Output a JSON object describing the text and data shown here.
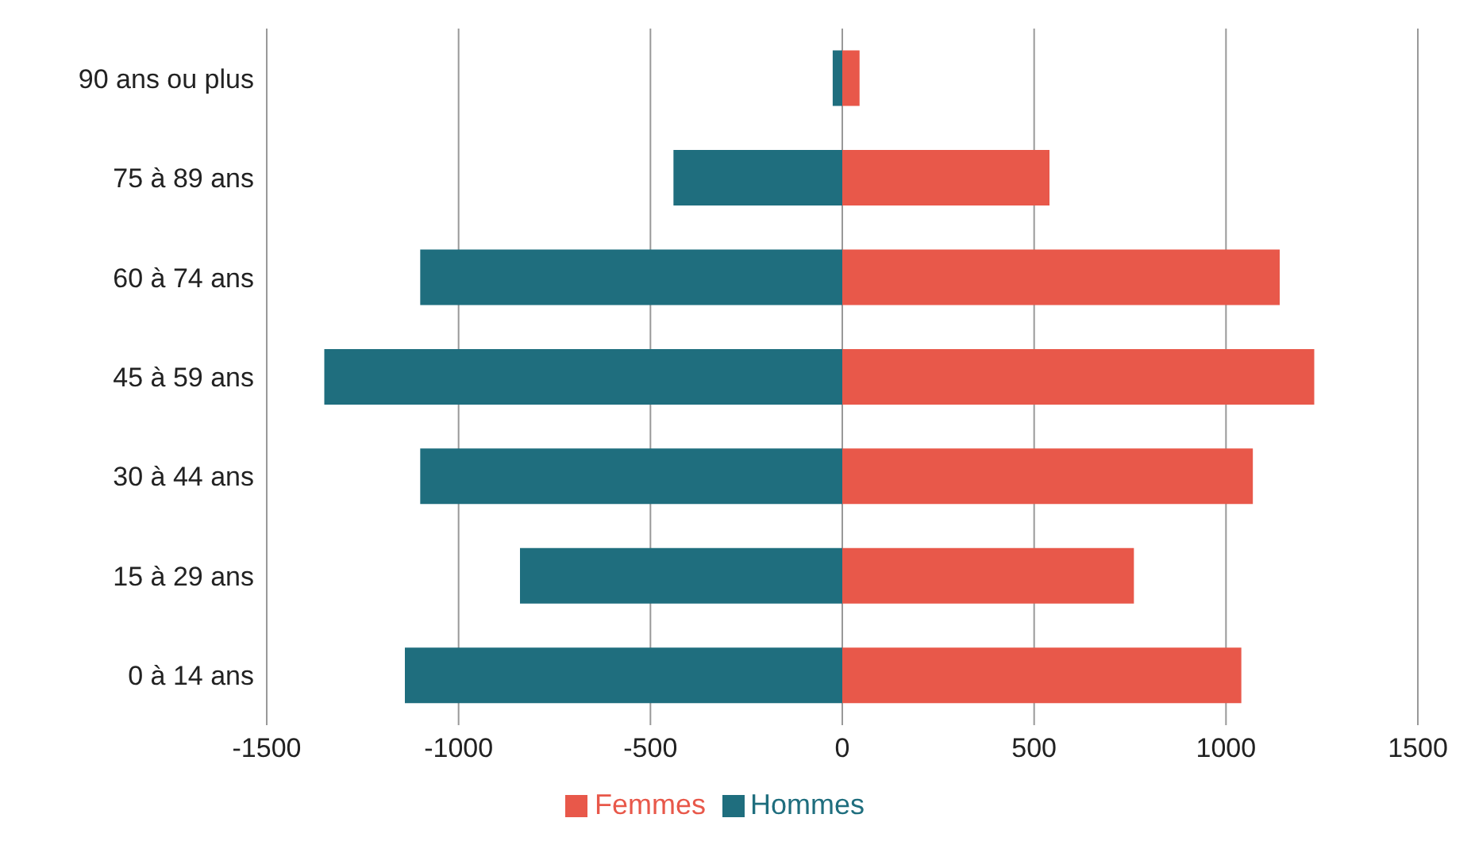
{
  "chart_data": {
    "type": "bar",
    "orientation": "horizontal",
    "stacked": true,
    "categories": [
      "90 ans ou plus",
      "75 à 89 ans",
      "60 à 74 ans",
      "45 à 59 ans",
      "30 à 44 ans",
      "15 à 29 ans",
      "0 à 14 ans"
    ],
    "series": [
      {
        "name": "Hommes",
        "color": "#1f6e7e",
        "values": [
          -25,
          -440,
          -1100,
          -1350,
          -1100,
          -840,
          -1140
        ]
      },
      {
        "name": "Femmes",
        "color": "#e8584a",
        "values": [
          45,
          540,
          1140,
          1230,
          1070,
          760,
          1040
        ]
      }
    ],
    "xlim": [
      -1500,
      1500
    ],
    "xticks": [
      -1500,
      -1000,
      -500,
      0,
      500,
      1000,
      1500
    ],
    "grid": "x",
    "legend": "bottom"
  }
}
